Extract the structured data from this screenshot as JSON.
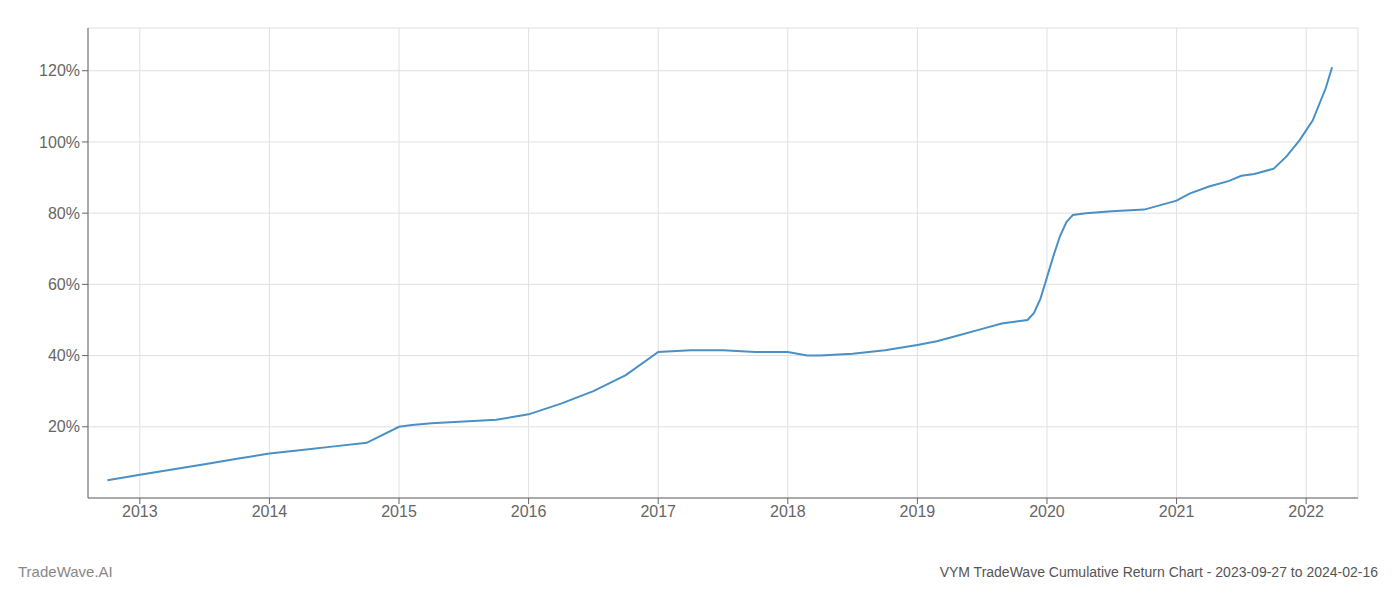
{
  "chart_data": {
    "type": "line",
    "title": "VYM TradeWave Cumulative Return Chart - 2023-09-27 to 2024-02-16",
    "annotations": [
      "TradeWave.AI"
    ],
    "color": "#4a90c4",
    "grid": true,
    "x": [
      2012.75,
      2013.0,
      2013.25,
      2013.5,
      2013.75,
      2014.0,
      2014.25,
      2014.5,
      2014.75,
      2015.0,
      2015.1,
      2015.25,
      2015.5,
      2015.75,
      2016.0,
      2016.25,
      2016.5,
      2016.75,
      2017.0,
      2017.25,
      2017.5,
      2017.75,
      2018.0,
      2018.15,
      2018.25,
      2018.5,
      2018.75,
      2019.0,
      2019.15,
      2019.3,
      2019.5,
      2019.65,
      2019.75,
      2019.85,
      2019.9,
      2019.95,
      2020.0,
      2020.05,
      2020.1,
      2020.15,
      2020.2,
      2020.3,
      2020.5,
      2020.75,
      2021.0,
      2021.1,
      2021.25,
      2021.4,
      2021.5,
      2021.6,
      2021.75,
      2021.85,
      2021.95,
      2022.05,
      2022.15,
      2022.2
    ],
    "values": [
      0.05,
      0.065,
      0.08,
      0.095,
      0.11,
      0.125,
      0.135,
      0.145,
      0.155,
      0.2,
      0.205,
      0.21,
      0.215,
      0.22,
      0.235,
      0.265,
      0.3,
      0.345,
      0.41,
      0.415,
      0.415,
      0.41,
      0.41,
      0.4,
      0.4,
      0.405,
      0.415,
      0.43,
      0.44,
      0.455,
      0.475,
      0.49,
      0.495,
      0.5,
      0.52,
      0.56,
      0.62,
      0.68,
      0.735,
      0.775,
      0.795,
      0.8,
      0.805,
      0.81,
      0.835,
      0.855,
      0.875,
      0.89,
      0.905,
      0.91,
      0.925,
      0.96,
      1.005,
      1.06,
      1.15,
      1.21
    ],
    "xlim": [
      2012.6,
      2022.4
    ],
    "xticks": [
      2013,
      2014,
      2015,
      2016,
      2017,
      2018,
      2019,
      2020,
      2021,
      2022
    ],
    "ylim": [
      0.0,
      1.32
    ],
    "yticks": [
      {
        "value": 0.2,
        "label": "20%"
      },
      {
        "value": 0.4,
        "label": "40%"
      },
      {
        "value": 0.6,
        "label": "60%"
      },
      {
        "value": 0.8,
        "label": "80%"
      },
      {
        "value": 1.0,
        "label": "100%"
      },
      {
        "value": 1.2,
        "label": "120%"
      }
    ]
  }
}
